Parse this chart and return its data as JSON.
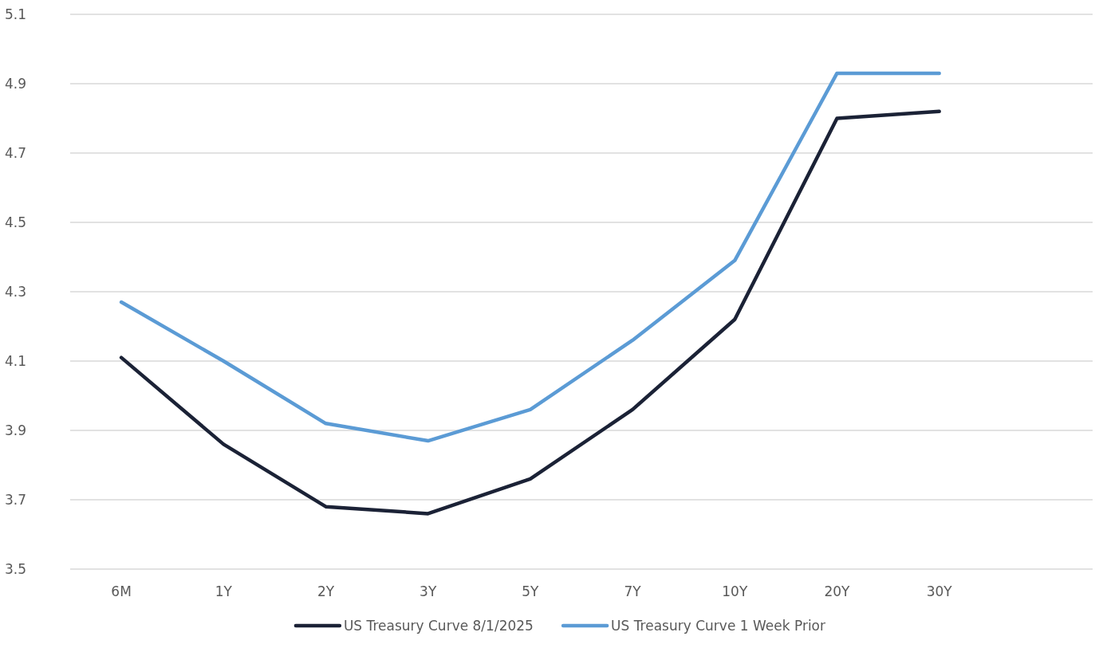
{
  "chart_data": {
    "type": "line",
    "categories": [
      "6M",
      "1Y",
      "2Y",
      "3Y",
      "5Y",
      "7Y",
      "10Y",
      "20Y",
      "30Y",
      null
    ],
    "series": [
      {
        "name": "US Treasury Curve 8/1/2025",
        "color": "#1b2236",
        "values": [
          4.11,
          3.86,
          3.68,
          3.66,
          3.76,
          3.96,
          4.22,
          4.8,
          4.82,
          null
        ]
      },
      {
        "name": "US Treasury Curve 1 Week Prior",
        "color": "#5b9bd5",
        "values": [
          4.27,
          4.1,
          3.92,
          3.87,
          3.96,
          4.16,
          4.39,
          4.93,
          4.93,
          null
        ]
      }
    ],
    "ylim": [
      3.5,
      5.1
    ],
    "yticks": [
      3.5,
      3.7,
      3.9,
      4.1,
      4.3,
      4.5,
      4.7,
      4.9,
      5.1
    ],
    "grid": "y",
    "legend": "bottom",
    "marker": "none",
    "line_style": "solid"
  }
}
